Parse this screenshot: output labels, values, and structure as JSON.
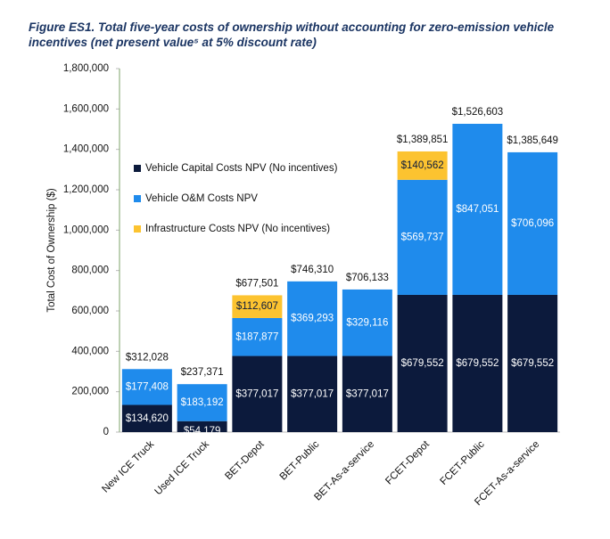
{
  "chart_data": {
    "type": "stacked-bar",
    "title": "Figure ES1. Total five-year costs of ownership without accounting for zero-emission vehicle incentives (net present value⁵ at 5% discount rate)",
    "y_label": "Total Cost of Ownership ($)",
    "categories": [
      "New ICE Truck",
      "Used ICE Truck",
      "BET-Depot",
      "BET-Public",
      "BET-As-a-service",
      "FCET-Depot",
      "FCET-Public",
      "FCET-As-a-service"
    ],
    "series": [
      {
        "name": "Vehicle Capital Costs NPV (No incentives)",
        "color": "#0c1a3c",
        "label_color": "#ffffff",
        "values": [
          134620,
          54179,
          377017,
          377017,
          377017,
          679552,
          679552,
          679552
        ],
        "value_labels": [
          "$134,620",
          "$54,179",
          "$377,017",
          "$377,017",
          "$377,017",
          "$679,552",
          "$679,552",
          "$679,552"
        ]
      },
      {
        "name": "Vehicle O&M Costs NPV",
        "color": "#1f8bec",
        "label_color": "#ffffff",
        "values": [
          177408,
          183192,
          187877,
          369293,
          329116,
          569737,
          847051,
          706096
        ],
        "value_labels": [
          "$177,408",
          "$183,192",
          "$187,877",
          "$369,293",
          "$329,116",
          "$569,737",
          "$847,051",
          "$706,096"
        ]
      },
      {
        "name": "Infrastructure Costs NPV (No incentives)",
        "color": "#fcc330",
        "label_color": "#0c1a3c",
        "values": [
          null,
          null,
          112607,
          null,
          null,
          140562,
          null,
          null
        ],
        "value_labels": [
          null,
          null,
          "$112,607",
          null,
          null,
          "$140,562",
          null,
          null
        ]
      }
    ],
    "totals": [
      312028,
      237371,
      677501,
      746310,
      706133,
      1389851,
      1526603,
      1385649
    ],
    "total_labels": [
      "$312,028",
      "$237,371",
      "$677,501",
      "$746,310",
      "$706,133",
      "$1,389,851",
      "$1,526,603",
      "$1,385,649"
    ],
    "ylim": [
      0,
      1800000
    ],
    "yticks": [
      0,
      {
        "value": 200000,
        "label": "200,000"
      },
      {
        "value": 400000,
        "label": "400,000"
      },
      {
        "value": 600000,
        "label": "600,000"
      },
      {
        "value": 800000,
        "label": "800,000"
      },
      {
        "value": 1000000,
        "label": "1,000,000"
      },
      {
        "value": 1200000,
        "label": "1,200,000"
      },
      {
        "value": 1400000,
        "label": "1,400,000"
      },
      {
        "value": 1600000,
        "label": "1,600,000"
      },
      {
        "value": 1800000,
        "label": "1,800,000"
      }
    ]
  }
}
